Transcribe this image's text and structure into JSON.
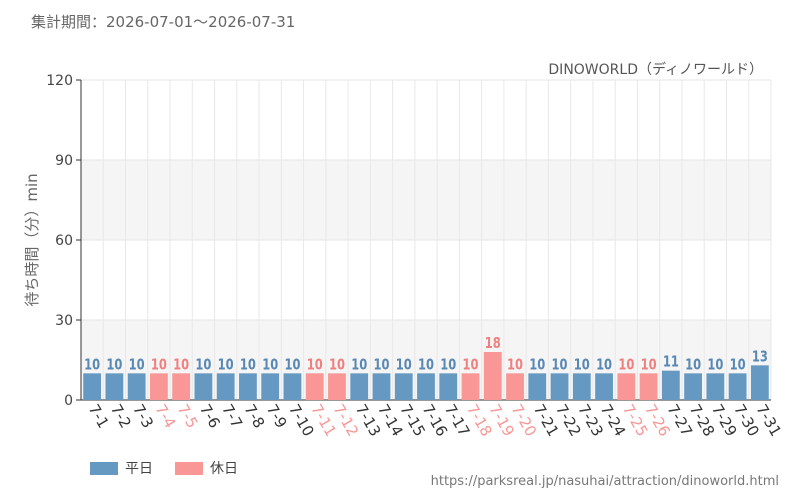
{
  "header": {
    "period_label": "集計期間：2026-07-01〜2026-07-31"
  },
  "source_url": "https://parksreal.jp/nasuhai/attraction/dinoworld.html",
  "colors": {
    "weekday": "#6699c2",
    "holiday": "#f99696",
    "weekday_label": "#5a88b4",
    "holiday_label": "#f08080"
  },
  "legend": [
    {
      "key": "weekday",
      "label": "平日"
    },
    {
      "key": "holiday",
      "label": "休日"
    }
  ],
  "chart_data": {
    "type": "bar",
    "title": "DINOWORLD（ディノワールド）",
    "ylabel": "待ち時間（分）min",
    "xlabel": "",
    "ylim": [
      0,
      120
    ],
    "yticks": [
      0,
      30,
      60,
      90,
      120
    ],
    "categories": [
      "7-1",
      "7-2",
      "7-3",
      "7-4",
      "7-5",
      "7-6",
      "7-7",
      "7-8",
      "7-9",
      "7-10",
      "7-11",
      "7-12",
      "7-13",
      "7-14",
      "7-15",
      "7-16",
      "7-17",
      "7-18",
      "7-19",
      "7-20",
      "7-21",
      "7-22",
      "7-23",
      "7-24",
      "7-25",
      "7-26",
      "7-27",
      "7-28",
      "7-29",
      "7-30",
      "7-31"
    ],
    "values": [
      10,
      10,
      10,
      10,
      10,
      10,
      10,
      10,
      10,
      10,
      10,
      10,
      10,
      10,
      10,
      10,
      10,
      10,
      18,
      10,
      10,
      10,
      10,
      10,
      10,
      10,
      11,
      10,
      10,
      10,
      13
    ],
    "day_type": [
      "weekday",
      "weekday",
      "weekday",
      "holiday",
      "holiday",
      "weekday",
      "weekday",
      "weekday",
      "weekday",
      "weekday",
      "holiday",
      "holiday",
      "weekday",
      "weekday",
      "weekday",
      "weekday",
      "weekday",
      "holiday",
      "holiday",
      "holiday",
      "weekday",
      "weekday",
      "weekday",
      "weekday",
      "holiday",
      "holiday",
      "weekday",
      "weekday",
      "weekday",
      "weekday",
      "weekday"
    ],
    "grid": true,
    "legend_position": "bottom-left"
  }
}
